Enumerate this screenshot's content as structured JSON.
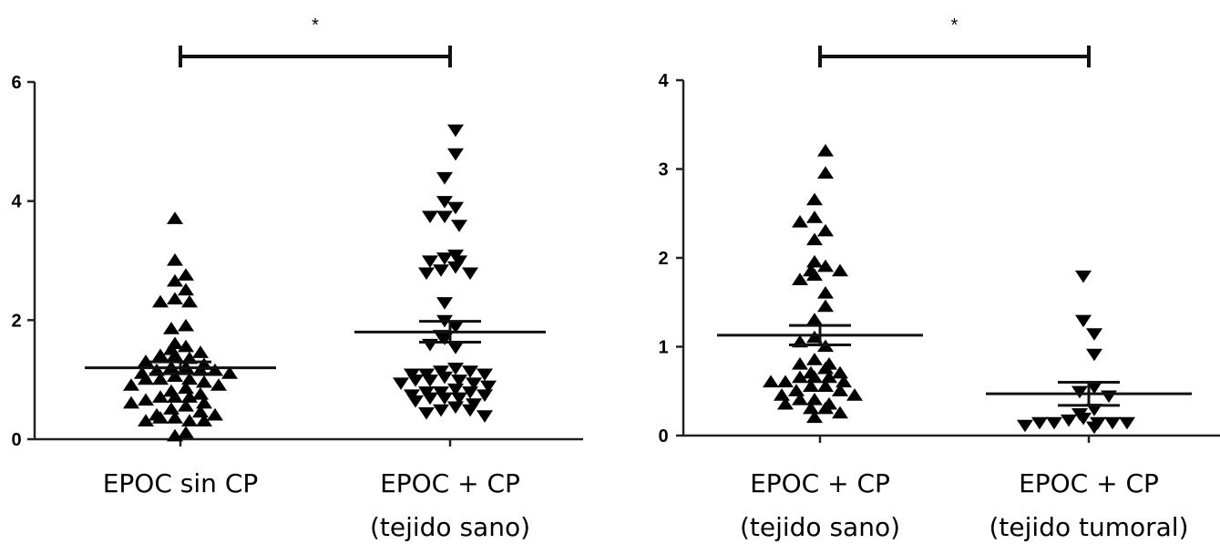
{
  "chart_data": [
    {
      "type": "scatter",
      "title": "",
      "xlabel": "",
      "ylabel": "",
      "ylim": [
        0,
        6
      ],
      "yticks": [
        "0",
        "2",
        "4",
        "6"
      ],
      "categories": [
        {
          "line1": "EPOC sin CP",
          "line2": ""
        },
        {
          "line1": "EPOC + CP",
          "line2": "(tejido sano)"
        }
      ],
      "significance": {
        "label": "*",
        "between": [
          0,
          1
        ]
      },
      "series": [
        {
          "category": 0,
          "marker": "triangle-up",
          "mean": 1.2,
          "sem_low": 1.1,
          "sem_high": 1.3,
          "values": [
            3.7,
            3.0,
            2.75,
            2.65,
            2.5,
            2.35,
            2.3,
            2.3,
            1.9,
            1.85,
            1.6,
            1.55,
            1.5,
            1.45,
            1.4,
            1.4,
            1.35,
            1.3,
            1.25,
            1.2,
            1.2,
            1.15,
            1.15,
            1.15,
            1.1,
            1.1,
            1.05,
            1.0,
            1.0,
            1.0,
            0.95,
            0.9,
            0.9,
            0.85,
            0.8,
            0.75,
            0.7,
            0.7,
            0.7,
            0.65,
            0.6,
            0.6,
            0.55,
            0.5,
            0.45,
            0.4,
            0.4,
            0.35,
            0.35,
            0.3,
            0.3,
            0.3,
            0.1,
            0.05
          ]
        },
        {
          "category": 1,
          "marker": "triangle-down",
          "mean": 1.8,
          "sem_low": 1.63,
          "sem_high": 1.98,
          "values": [
            5.2,
            4.8,
            4.4,
            4.0,
            3.9,
            3.75,
            3.75,
            3.6,
            3.1,
            3.05,
            3.0,
            3.0,
            2.9,
            2.85,
            2.8,
            2.8,
            2.3,
            2.0,
            1.9,
            1.75,
            1.7,
            1.6,
            1.55,
            1.2,
            1.15,
            1.15,
            1.1,
            1.1,
            1.1,
            1.05,
            1.0,
            1.0,
            1.0,
            0.95,
            0.95,
            0.9,
            0.85,
            0.8,
            0.8,
            0.8,
            0.75,
            0.75,
            0.7,
            0.7,
            0.7,
            0.65,
            0.6,
            0.55,
            0.5,
            0.5,
            0.45,
            0.4
          ]
        }
      ]
    },
    {
      "type": "scatter",
      "title": "",
      "xlabel": "",
      "ylabel": "",
      "ylim": [
        0,
        4
      ],
      "yticks": [
        "0",
        "1",
        "2",
        "3",
        "4"
      ],
      "categories": [
        {
          "line1": "EPOC + CP",
          "line2": "(tejido sano)"
        },
        {
          "line1": "EPOC + CP",
          "line2": "(tejido tumoral)"
        }
      ],
      "significance": {
        "label": "*",
        "between": [
          0,
          1
        ]
      },
      "series": [
        {
          "category": 0,
          "marker": "triangle-up",
          "mean": 1.13,
          "sem_low": 1.02,
          "sem_high": 1.24,
          "values": [
            3.2,
            2.95,
            2.65,
            2.45,
            2.4,
            2.3,
            2.2,
            1.95,
            1.9,
            1.85,
            1.85,
            1.8,
            1.75,
            1.6,
            1.45,
            1.3,
            1.1,
            1.05,
            1.0,
            0.85,
            0.8,
            0.8,
            0.75,
            0.7,
            0.7,
            0.65,
            0.65,
            0.65,
            0.6,
            0.6,
            0.6,
            0.55,
            0.55,
            0.5,
            0.5,
            0.45,
            0.45,
            0.4,
            0.4,
            0.35,
            0.35,
            0.3,
            0.3,
            0.25,
            0.2
          ]
        },
        {
          "category": 1,
          "marker": "triangle-down",
          "mean": 0.47,
          "sem_low": 0.34,
          "sem_high": 0.6,
          "values": [
            1.8,
            1.3,
            1.15,
            0.92,
            0.55,
            0.5,
            0.45,
            0.3,
            0.25,
            0.2,
            0.18,
            0.15,
            0.15,
            0.15,
            0.15,
            0.15,
            0.12,
            0.1
          ]
        }
      ]
    }
  ]
}
